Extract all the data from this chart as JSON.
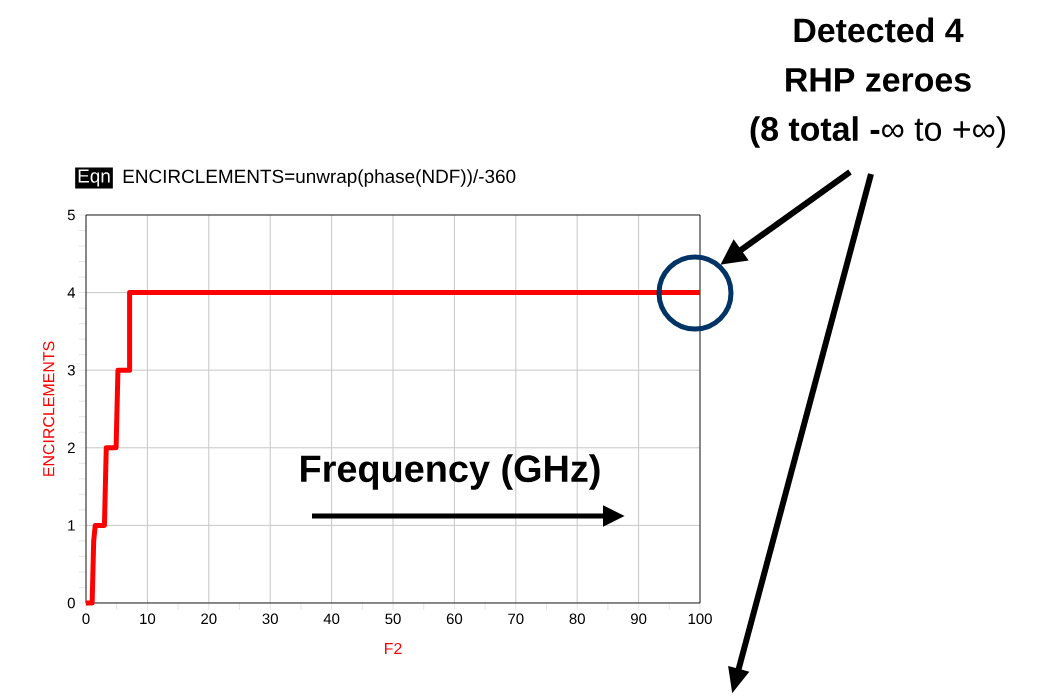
{
  "chart_data": {
    "type": "line",
    "xlabel": "F2",
    "ylabel": "ENCIRCLEMENTS",
    "x": [
      0,
      1.0,
      1.25,
      1.5,
      3.0,
      3.3,
      4.9,
      5.2,
      7.1,
      7.1,
      100
    ],
    "series": [
      {
        "color": "#ff0000",
        "values": [
          0,
          0,
          0.8,
          1,
          1,
          2,
          2,
          3,
          3,
          4,
          4
        ]
      }
    ],
    "xlim": [
      0,
      100
    ],
    "ylim": [
      0,
      5
    ],
    "xticks": [
      0,
      10,
      20,
      30,
      40,
      50,
      60,
      70,
      80,
      90,
      100
    ],
    "yticks": [
      0,
      1,
      2,
      3,
      4,
      5
    ],
    "grid": true,
    "annotations": [
      "Eqn",
      "ENCIRCLEMENTS=unwrap(phase(NDF))/-360",
      "Frequency (GHz)",
      "Detected 4",
      "RHP zeroes",
      "**(8 total -**∞ to +∞)"
    ]
  }
}
